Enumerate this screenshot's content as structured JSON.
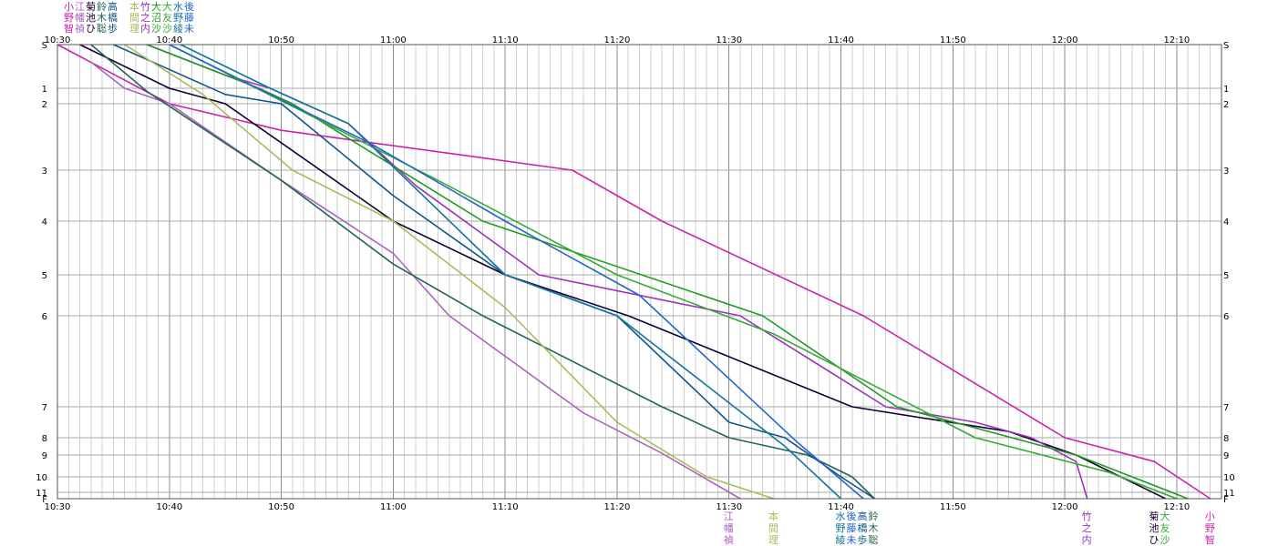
{
  "chart_data": {
    "type": "line",
    "title": "",
    "xlabel": "",
    "ylabel": "",
    "x_axis": {
      "type": "time",
      "start": "10:30",
      "end": "12:14",
      "major_step_minutes": 10,
      "minor_step_minutes": 1,
      "tick_labels": [
        "10:30",
        "10:40",
        "10:50",
        "11:00",
        "11:10",
        "11:20",
        "11:30",
        "11:40",
        "11:50",
        "12:00",
        "12:10"
      ]
    },
    "y_axis": {
      "inverted": true,
      "tick_labels": [
        "S",
        "1",
        "2",
        "3",
        "4",
        "5",
        "6",
        "7",
        "8",
        "9",
        "10",
        "11",
        "F"
      ],
      "tick_values": [
        0,
        1,
        2,
        3,
        4,
        5,
        6,
        7,
        8,
        9,
        10,
        11,
        12
      ]
    },
    "grid": true,
    "series": [
      {
        "name": "小野智",
        "color": "#cc22aa",
        "points": [
          [
            "10:30",
            0
          ],
          [
            "10:40",
            2
          ],
          [
            "10:50",
            2.4
          ],
          [
            "11:16",
            3
          ],
          [
            "11:24",
            4
          ],
          [
            "11:42",
            6
          ],
          [
            "12:00",
            8
          ],
          [
            "12:08",
            9.3
          ],
          [
            "12:13",
            12
          ]
        ]
      },
      {
        "name": "江幡禎",
        "color": "#aa66bb",
        "points": [
          [
            "10:33",
            0.4
          ],
          [
            "10:36",
            1
          ],
          [
            "10:40",
            2
          ],
          [
            "10:50",
            3.2
          ],
          [
            "11:00",
            4.6
          ],
          [
            "11:05",
            6
          ],
          [
            "11:17",
            7.2
          ],
          [
            "11:24",
            8.9
          ],
          [
            "11:31",
            12
          ]
        ]
      },
      {
        "name": "菊池ひ",
        "color": "#110033",
        "points": [
          [
            "10:32",
            0
          ],
          [
            "10:40",
            1
          ],
          [
            "10:45",
            2
          ],
          [
            "11:00",
            4
          ],
          [
            "11:10",
            5
          ],
          [
            "11:21",
            6
          ],
          [
            "11:41",
            7
          ],
          [
            "11:55",
            7.8
          ],
          [
            "12:01",
            9
          ],
          [
            "12:09",
            12
          ]
        ]
      },
      {
        "name": "鈴木聡",
        "color": "#226655",
        "points": [
          [
            "10:33",
            0
          ],
          [
            "10:38",
            1.2
          ],
          [
            "10:50",
            3.2
          ],
          [
            "11:00",
            4.8
          ],
          [
            "11:08",
            6
          ],
          [
            "11:24",
            7
          ],
          [
            "11:30",
            8
          ],
          [
            "11:37",
            9
          ],
          [
            "11:41",
            10
          ],
          [
            "11:43",
            12
          ]
        ]
      },
      {
        "name": "高橋歩",
        "color": "#115588",
        "points": [
          [
            "10:35",
            0
          ],
          [
            "10:45",
            1.4
          ],
          [
            "10:50",
            2
          ],
          [
            "11:00",
            3.5
          ],
          [
            "11:10",
            5
          ],
          [
            "11:20",
            6
          ],
          [
            "11:30",
            7.5
          ],
          [
            "11:35",
            8
          ],
          [
            "11:40",
            10
          ],
          [
            "11:43",
            12
          ]
        ]
      },
      {
        "name": "本間理",
        "color": "#aabb55",
        "points": [
          [
            "10:36",
            0
          ],
          [
            "10:43",
            1.4
          ],
          [
            "10:51",
            3
          ],
          [
            "11:00",
            4
          ],
          [
            "11:10",
            5.8
          ],
          [
            "11:20",
            7.5
          ],
          [
            "11:28",
            10
          ],
          [
            "11:34",
            12
          ]
        ]
      },
      {
        "name": "竹之内",
        "color": "#9933bb",
        "points": [
          [
            "10:38",
            0
          ],
          [
            "10:45",
            0.7
          ],
          [
            "10:49",
            1
          ],
          [
            "10:56",
            2.3
          ],
          [
            "11:02",
            3.3
          ],
          [
            "11:13",
            5
          ],
          [
            "11:31",
            6
          ],
          [
            "11:44",
            7
          ],
          [
            "11:52",
            7.5
          ],
          [
            "11:57",
            8
          ],
          [
            "12:01",
            9.3
          ],
          [
            "12:02",
            12
          ]
        ]
      },
      {
        "name": "大沼沙",
        "color": "#229922",
        "points": [
          [
            "10:38",
            0
          ],
          [
            "10:48",
            1
          ],
          [
            "10:51",
            2
          ],
          [
            "11:08",
            4
          ],
          [
            "11:33",
            6
          ],
          [
            "11:45",
            7
          ],
          [
            "12:01",
            9
          ],
          [
            "12:11",
            12
          ]
        ]
      },
      {
        "name": "大友沙",
        "color": "#33aa33",
        "points": [
          [
            "10:40",
            0
          ],
          [
            "10:50",
            1.8
          ],
          [
            "11:04",
            3.2
          ],
          [
            "11:20",
            5
          ],
          [
            "11:34",
            6.2
          ],
          [
            "11:52",
            8
          ],
          [
            "12:04",
            9.8
          ],
          [
            "12:10",
            12
          ]
        ]
      },
      {
        "name": "水野綾",
        "color": "#117799",
        "points": [
          [
            "10:41",
            0
          ],
          [
            "10:49",
            1
          ],
          [
            "10:56",
            2.3
          ],
          [
            "11:10",
            5
          ],
          [
            "11:20",
            6
          ],
          [
            "11:35",
            8.5
          ],
          [
            "11:40",
            12
          ]
        ]
      },
      {
        "name": "後藤未",
        "color": "#2266cc",
        "points": [
          [
            "10:40",
            0
          ],
          [
            "10:49",
            1.4
          ],
          [
            "10:58",
            2.6
          ],
          [
            "11:10",
            4
          ],
          [
            "11:22",
            5.5
          ],
          [
            "11:36",
            8.2
          ],
          [
            "11:42",
            12
          ]
        ]
      }
    ],
    "bottom_label_groups": [
      {
        "x_time": "11:30",
        "columns": [
          {
            "chars": [
              "江",
              "幡",
              "禎"
            ],
            "color": "#aa66bb"
          }
        ]
      },
      {
        "x_time": "11:34",
        "columns": [
          {
            "chars": [
              "本",
              "間",
              "理"
            ],
            "color": "#aabb55"
          }
        ]
      },
      {
        "x_time": "11:40",
        "columns": [
          {
            "chars": [
              "水",
              "野",
              "綾"
            ],
            "color": "#117799"
          },
          {
            "chars": [
              "後",
              "藤",
              "未"
            ],
            "color": "#2266cc"
          },
          {
            "chars": [
              "高",
              "橋",
              "歩"
            ],
            "color": "#115588"
          },
          {
            "chars": [
              "鈴",
              "木",
              "聡"
            ],
            "color": "#226655"
          }
        ]
      },
      {
        "x_time": "12:02",
        "columns": [
          {
            "chars": [
              "竹",
              "之",
              "内"
            ],
            "color": "#9933bb"
          }
        ]
      },
      {
        "x_time": "12:08",
        "columns": [
          {
            "chars": [
              "菊",
              "池",
              "ひ"
            ],
            "color": "#110033"
          },
          {
            "chars": [
              "大",
              "友",
              "沙"
            ],
            "color": "#33aa33"
          }
        ]
      },
      {
        "x_time": "12:13",
        "columns": [
          {
            "chars": [
              "小",
              "野",
              "智"
            ],
            "color": "#cc22aa"
          }
        ]
      }
    ],
    "top_label_columns": [
      {
        "chars": [
          "小",
          "野",
          "智"
        ],
        "color": "#cc22aa"
      },
      {
        "chars": [
          "江",
          "幡",
          "禎"
        ],
        "color": "#aa66bb"
      },
      {
        "chars": [
          "菊",
          "池",
          "ひ"
        ],
        "color": "#110033"
      },
      {
        "chars": [
          "鈴",
          "木",
          "聡"
        ],
        "color": "#226655"
      },
      {
        "chars": [
          "高",
          "橋",
          "歩"
        ],
        "color": "#115588"
      },
      {
        "chars": [
          "本",
          "間",
          "理"
        ],
        "color": "#aabb55"
      },
      {
        "chars": [
          "竹",
          "之",
          "内"
        ],
        "color": "#9933bb"
      },
      {
        "chars": [
          "大",
          "沼",
          "沙"
        ],
        "color": "#229922"
      },
      {
        "chars": [
          "大",
          "友",
          "沙"
        ],
        "color": "#33aa33"
      },
      {
        "chars": [
          "水",
          "野",
          "綾"
        ],
        "color": "#117799"
      },
      {
        "chars": [
          "後",
          "藤",
          "未"
        ],
        "color": "#2266cc"
      }
    ]
  }
}
